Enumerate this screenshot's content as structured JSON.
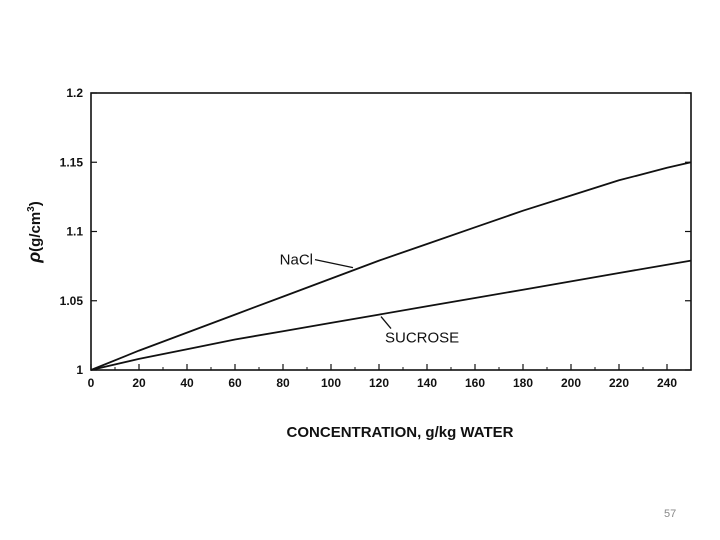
{
  "chart_data": {
    "type": "line",
    "title": "",
    "xlabel": "CONCENTRATION, g/kg WATER",
    "ylabel_symbol": "ρ",
    "ylabel_unit_prefix": "(g/cm",
    "ylabel_unit_exp": "3",
    "ylabel_unit_suffix": ")",
    "xlim": [
      0,
      250
    ],
    "ylim": [
      1,
      1.2
    ],
    "xticks": [
      0,
      20,
      40,
      60,
      80,
      100,
      120,
      140,
      160,
      180,
      200,
      220,
      240
    ],
    "yticks": [
      1,
      1.05,
      1.1,
      1.15,
      1.2
    ],
    "ytick_labels": [
      "1",
      "1.05",
      "1.1",
      "1.15",
      "1.2"
    ],
    "grid": false,
    "series": [
      {
        "name": "NaCl",
        "x": [
          0,
          20,
          40,
          60,
          80,
          100,
          120,
          140,
          160,
          180,
          200,
          220,
          240,
          250
        ],
        "y": [
          1.0,
          1.014,
          1.027,
          1.04,
          1.053,
          1.066,
          1.079,
          1.091,
          1.103,
          1.115,
          1.126,
          1.137,
          1.146,
          1.15
        ]
      },
      {
        "name": "SUCROSE",
        "x": [
          0,
          20,
          40,
          60,
          80,
          100,
          120,
          140,
          160,
          180,
          200,
          220,
          240,
          250
        ],
        "y": [
          1.0,
          1.008,
          1.015,
          1.022,
          1.028,
          1.034,
          1.04,
          1.046,
          1.052,
          1.058,
          1.064,
          1.07,
          1.076,
          1.079
        ]
      }
    ],
    "annotations": [
      {
        "text": "NaCl",
        "series": "NaCl",
        "arrow_to_x": 110
      },
      {
        "text": "SUCROSE",
        "series": "SUCROSE",
        "arrow_to_x": 120
      }
    ]
  },
  "page_number": "57"
}
